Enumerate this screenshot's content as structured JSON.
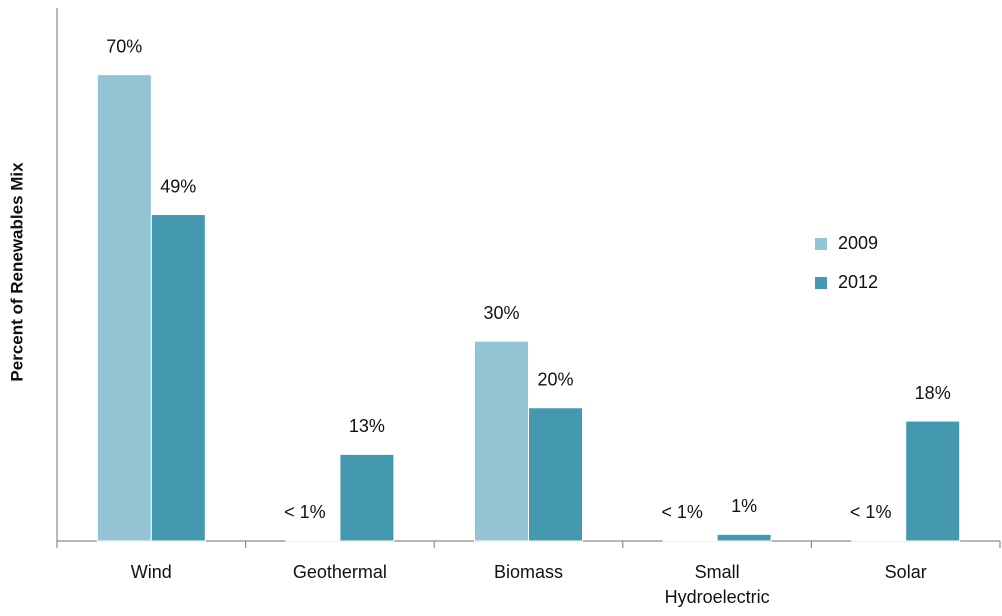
{
  "chart_data": {
    "type": "bar",
    "y_label": "Percent of Renewables Mix",
    "categories": [
      "Wind",
      "Geothermal",
      "Biomass",
      "Small Hydroelectric",
      "Solar"
    ],
    "series": [
      {
        "name": "2009",
        "color": "#93c4d4",
        "values": [
          70,
          0.1,
          30,
          0.1,
          0.1
        ],
        "value_labels": [
          "70%",
          "< 1%",
          "30%",
          "< 1%",
          "< 1%"
        ]
      },
      {
        "name": "2012",
        "color": "#4499b0",
        "values": [
          49,
          13,
          20,
          1,
          18
        ],
        "value_labels": [
          "49%",
          "13%",
          "20%",
          "1%",
          "18%"
        ]
      }
    ],
    "ylim": [
      0,
      80
    ],
    "legend": "right"
  }
}
